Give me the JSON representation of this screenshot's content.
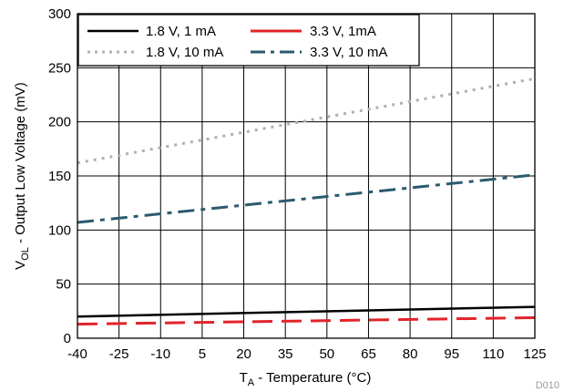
{
  "chart_data": {
    "type": "line",
    "title": "",
    "xlabel": {
      "main": "T",
      "sub": "A",
      "rest": " - Temperature (°C)"
    },
    "ylabel": {
      "main": "V",
      "sub": "OL",
      "rest": " - Output Low Voltage (mV)"
    },
    "xlim": [
      -40,
      125
    ],
    "ylim": [
      0,
      300
    ],
    "x_ticks": [
      -40,
      -25,
      -10,
      5,
      20,
      35,
      50,
      65,
      80,
      95,
      110,
      125
    ],
    "y_ticks": [
      0,
      50,
      100,
      150,
      200,
      250,
      300
    ],
    "grid": true,
    "legend_position": "top-left",
    "series": [
      {
        "name": "1.8 V, 1 mA",
        "color": "#000000",
        "dash": "solid",
        "x": [
          -40,
          125
        ],
        "y": [
          20,
          29
        ]
      },
      {
        "name": "3.3 V, 1mA",
        "color": "#e3232a",
        "dash": "long-dash",
        "x": [
          -40,
          125
        ],
        "y": [
          13,
          19
        ]
      },
      {
        "name": "1.8 V, 10 mA",
        "color": "#b0b0b0",
        "dash": "dotted",
        "x": [
          -40,
          125
        ],
        "y": [
          162,
          240
        ]
      },
      {
        "name": "3.3 V, 10 mA",
        "color": "#2b5a6e",
        "dash": "dash-dot",
        "x": [
          -40,
          125
        ],
        "y": [
          107,
          151
        ]
      }
    ],
    "annotation": "D010"
  }
}
